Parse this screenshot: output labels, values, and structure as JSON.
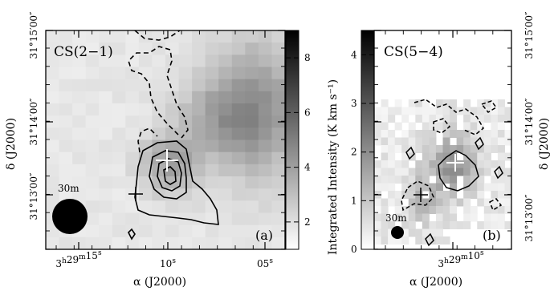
{
  "chart_data": [
    {
      "type": "heatmap",
      "panel": "(a)",
      "label": "CS(2−1)",
      "beam_label": "30m",
      "xlabel": "α (J2000)",
      "ylabel": "δ (J2000)",
      "x_ticks": [
        {
          "h": "3",
          "m": "29",
          "s": "15",
          "form": "full"
        },
        {
          "s": "10",
          "form": "sec"
        },
        {
          "s": "05",
          "form": "sec"
        }
      ],
      "y_ticks": [
        {
          "d": "31",
          "m": "13",
          "s": "00"
        },
        {
          "d": "31",
          "m": "14",
          "s": "00"
        },
        {
          "d": "31",
          "m": "15",
          "s": "00"
        }
      ],
      "y_tick_units": {
        "deg": "°",
        "min": "′",
        "sec": "″"
      },
      "colorbar": {
        "label": "Integrated Intensity (K km s⁻¹)",
        "ticks": [
          "2",
          "4",
          "6",
          "8"
        ],
        "range": [
          1,
          9
        ]
      },
      "markers": [
        "white cross",
        "black cross"
      ]
    },
    {
      "type": "heatmap",
      "panel": "(b)",
      "label": "CS(5−4)",
      "beam_label": "30m",
      "xlabel": "α (J2000)",
      "ylabel": "δ (J2000)",
      "x_ticks": [
        {
          "h": "3",
          "m": "29",
          "s": "10",
          "form": "full"
        }
      ],
      "y_ticks": [
        {
          "d": "31",
          "m": "13",
          "s": "00"
        },
        {
          "d": "31",
          "m": "14",
          "s": "00"
        },
        {
          "d": "31",
          "m": "15",
          "s": "00"
        }
      ],
      "colorbar": {
        "label": "Integrated Intensity (K km s⁻¹)",
        "ticks": [
          "0",
          "1",
          "2",
          "3",
          "4"
        ],
        "range": [
          0,
          4.5
        ]
      },
      "markers": [
        "white cross",
        "black cross"
      ]
    }
  ]
}
